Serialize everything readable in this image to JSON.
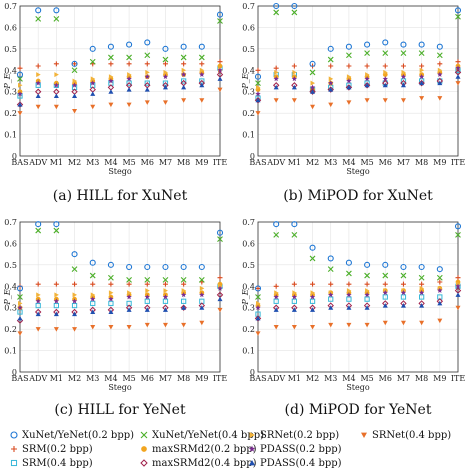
{
  "chart_data": [
    {
      "type": "scatter",
      "caption": "(a) HILL for XuNet",
      "xlabel": "Stego",
      "ylabel": "P_E",
      "ylim": [
        0,
        0.7
      ],
      "yticks": [
        "0",
        "0.1",
        "0.2",
        "0.3",
        "0.4",
        "0.5",
        "0.6",
        "0.7"
      ],
      "categories": [
        "BAS",
        "ADV",
        "M1",
        "M2",
        "M3",
        "M4",
        "M5",
        "M6",
        "M7",
        "M8",
        "M9",
        "ITE"
      ],
      "grid": true,
      "series": {
        "xy02": [
          0.38,
          0.68,
          0.68,
          0.43,
          0.5,
          0.51,
          0.52,
          0.53,
          0.5,
          0.51,
          0.51,
          0.66
        ],
        "xy04": [
          0.36,
          0.64,
          0.64,
          0.4,
          0.44,
          0.46,
          0.46,
          0.47,
          0.45,
          0.46,
          0.46,
          0.63
        ],
        "srm02": [
          0.41,
          0.42,
          0.43,
          0.43,
          0.43,
          0.43,
          0.43,
          0.43,
          0.43,
          0.43,
          0.43,
          0.44
        ],
        "srm04": [
          0.28,
          0.33,
          0.33,
          0.32,
          0.33,
          0.34,
          0.34,
          0.34,
          0.34,
          0.35,
          0.35,
          0.41
        ],
        "maxs02": [
          0.3,
          0.35,
          0.34,
          0.34,
          0.35,
          0.36,
          0.37,
          0.37,
          0.38,
          0.38,
          0.39,
          0.42
        ],
        "maxs04": [
          0.24,
          0.3,
          0.3,
          0.3,
          0.31,
          0.32,
          0.33,
          0.33,
          0.33,
          0.34,
          0.34,
          0.38
        ],
        "srn02": [
          0.33,
          0.38,
          0.38,
          0.35,
          0.36,
          0.37,
          0.38,
          0.39,
          0.39,
          0.4,
          0.4,
          0.4
        ],
        "srn04": [
          0.2,
          0.23,
          0.23,
          0.21,
          0.23,
          0.24,
          0.24,
          0.25,
          0.25,
          0.26,
          0.26,
          0.31
        ],
        "pd02": [
          0.29,
          0.34,
          0.33,
          0.33,
          0.34,
          0.35,
          0.36,
          0.37,
          0.37,
          0.38,
          0.38,
          0.4
        ],
        "pd04": [
          0.24,
          0.28,
          0.28,
          0.28,
          0.29,
          0.3,
          0.31,
          0.31,
          0.32,
          0.32,
          0.33,
          0.36
        ]
      }
    },
    {
      "type": "scatter",
      "caption": "(b) MiPOD for XuNet",
      "xlabel": "Stego",
      "ylabel": "P_E",
      "ylim": [
        0,
        0.7
      ],
      "yticks": [
        "0",
        "0.1",
        "0.2",
        "0.3",
        "0.4",
        "0.5",
        "0.6",
        "0.7"
      ],
      "categories": [
        "BAS",
        "ADV",
        "M1",
        "M2",
        "M3",
        "M4",
        "M5",
        "M6",
        "M7",
        "M8",
        "M9",
        "ITE"
      ],
      "grid": true,
      "series": {
        "xy02": [
          0.37,
          0.7,
          0.7,
          0.43,
          0.5,
          0.51,
          0.52,
          0.53,
          0.52,
          0.52,
          0.51,
          0.68
        ],
        "xy04": [
          0.34,
          0.67,
          0.67,
          0.39,
          0.45,
          0.47,
          0.48,
          0.48,
          0.48,
          0.48,
          0.47,
          0.65
        ],
        "srm02": [
          0.4,
          0.41,
          0.42,
          0.42,
          0.42,
          0.42,
          0.42,
          0.42,
          0.42,
          0.42,
          0.43,
          0.44
        ],
        "srm04": [
          0.27,
          0.38,
          0.38,
          0.31,
          0.32,
          0.33,
          0.34,
          0.34,
          0.35,
          0.35,
          0.35,
          0.4
        ],
        "maxs02": [
          0.31,
          0.37,
          0.37,
          0.31,
          0.34,
          0.36,
          0.37,
          0.38,
          0.38,
          0.38,
          0.39,
          0.42
        ],
        "maxs04": [
          0.26,
          0.33,
          0.33,
          0.3,
          0.31,
          0.32,
          0.33,
          0.34,
          0.34,
          0.34,
          0.35,
          0.39
        ],
        "srn02": [
          0.32,
          0.39,
          0.39,
          0.34,
          0.36,
          0.37,
          0.38,
          0.39,
          0.39,
          0.4,
          0.4,
          0.41
        ],
        "srn04": [
          0.2,
          0.26,
          0.26,
          0.23,
          0.24,
          0.25,
          0.26,
          0.26,
          0.26,
          0.27,
          0.27,
          0.34
        ],
        "pd02": [
          0.29,
          0.36,
          0.36,
          0.32,
          0.34,
          0.35,
          0.36,
          0.36,
          0.37,
          0.37,
          0.38,
          0.41
        ],
        "pd04": [
          0.26,
          0.32,
          0.32,
          0.3,
          0.31,
          0.32,
          0.33,
          0.33,
          0.33,
          0.34,
          0.34,
          0.37
        ]
      }
    },
    {
      "type": "scatter",
      "caption": "(c) HILL for YeNet",
      "xlabel": "Stego",
      "ylabel": "P_E",
      "ylim": [
        0,
        0.7
      ],
      "yticks": [
        "0",
        "0.1",
        "0.2",
        "0.3",
        "0.4",
        "0.5",
        "0.6",
        "0.7"
      ],
      "categories": [
        "BAS",
        "ADV",
        "M1",
        "M2",
        "M3",
        "M4",
        "M5",
        "M6",
        "M7",
        "M8",
        "M9",
        "ITE"
      ],
      "grid": true,
      "series": {
        "xy02": [
          0.39,
          0.69,
          0.69,
          0.55,
          0.51,
          0.5,
          0.49,
          0.49,
          0.49,
          0.49,
          0.49,
          0.65
        ],
        "xy04": [
          0.35,
          0.66,
          0.66,
          0.48,
          0.45,
          0.44,
          0.43,
          0.43,
          0.43,
          0.43,
          0.43,
          0.62
        ],
        "srm02": [
          0.4,
          0.41,
          0.41,
          0.41,
          0.41,
          0.41,
          0.41,
          0.41,
          0.41,
          0.41,
          0.42,
          0.44
        ],
        "srm04": [
          0.28,
          0.31,
          0.31,
          0.31,
          0.32,
          0.32,
          0.32,
          0.33,
          0.33,
          0.33,
          0.33,
          0.4
        ],
        "maxs02": [
          0.3,
          0.34,
          0.34,
          0.34,
          0.35,
          0.35,
          0.36,
          0.36,
          0.36,
          0.37,
          0.37,
          0.41
        ],
        "maxs04": [
          0.24,
          0.28,
          0.28,
          0.28,
          0.29,
          0.29,
          0.3,
          0.3,
          0.3,
          0.3,
          0.31,
          0.36
        ],
        "srn02": [
          0.32,
          0.36,
          0.36,
          0.36,
          0.36,
          0.37,
          0.37,
          0.38,
          0.38,
          0.38,
          0.39,
          0.4
        ],
        "srn04": [
          0.18,
          0.2,
          0.2,
          0.2,
          0.21,
          0.21,
          0.21,
          0.22,
          0.22,
          0.22,
          0.23,
          0.29
        ],
        "pd02": [
          0.3,
          0.33,
          0.33,
          0.33,
          0.34,
          0.34,
          0.35,
          0.35,
          0.35,
          0.36,
          0.36,
          0.39
        ],
        "pd04": [
          0.25,
          0.27,
          0.27,
          0.27,
          0.28,
          0.28,
          0.29,
          0.29,
          0.29,
          0.3,
          0.3,
          0.34
        ]
      }
    },
    {
      "type": "scatter",
      "caption": "(d) MiPOD for YeNet",
      "xlabel": "Stego",
      "ylabel": "P_E",
      "ylim": [
        0,
        0.7
      ],
      "yticks": [
        "0",
        "0.1",
        "0.2",
        "0.3",
        "0.4",
        "0.5",
        "0.6",
        "0.7"
      ],
      "categories": [
        "BAS",
        "ADV",
        "M1",
        "M2",
        "M3",
        "M4",
        "M5",
        "M6",
        "M7",
        "M8",
        "M9",
        "ITE"
      ],
      "grid": true,
      "series": {
        "xy02": [
          0.39,
          0.69,
          0.69,
          0.58,
          0.53,
          0.51,
          0.5,
          0.5,
          0.49,
          0.49,
          0.48,
          0.68
        ],
        "xy04": [
          0.35,
          0.64,
          0.64,
          0.53,
          0.48,
          0.46,
          0.45,
          0.45,
          0.45,
          0.44,
          0.44,
          0.64
        ],
        "srm02": [
          0.39,
          0.4,
          0.41,
          0.41,
          0.41,
          0.41,
          0.41,
          0.41,
          0.41,
          0.41,
          0.42,
          0.44
        ],
        "srm04": [
          0.27,
          0.33,
          0.33,
          0.33,
          0.34,
          0.34,
          0.34,
          0.35,
          0.35,
          0.35,
          0.35,
          0.4
        ],
        "maxs02": [
          0.31,
          0.36,
          0.36,
          0.36,
          0.37,
          0.37,
          0.37,
          0.38,
          0.38,
          0.38,
          0.39,
          0.42
        ],
        "maxs04": [
          0.25,
          0.3,
          0.3,
          0.3,
          0.31,
          0.31,
          0.31,
          0.32,
          0.32,
          0.32,
          0.33,
          0.38
        ],
        "srn02": [
          0.32,
          0.37,
          0.37,
          0.37,
          0.37,
          0.38,
          0.38,
          0.38,
          0.38,
          0.39,
          0.39,
          0.41
        ],
        "srn04": [
          0.18,
          0.21,
          0.21,
          0.21,
          0.22,
          0.22,
          0.22,
          0.23,
          0.23,
          0.23,
          0.24,
          0.3
        ],
        "pd02": [
          0.3,
          0.35,
          0.35,
          0.35,
          0.36,
          0.36,
          0.36,
          0.37,
          0.37,
          0.37,
          0.38,
          0.4
        ],
        "pd04": [
          0.25,
          0.29,
          0.29,
          0.29,
          0.3,
          0.3,
          0.3,
          0.31,
          0.31,
          0.31,
          0.32,
          0.36
        ]
      }
    }
  ],
  "legend": [
    {
      "key": "xy02",
      "label": "XuNet/YeNet(0.2 bpp)",
      "marker": "circle",
      "color": "#1f77d4"
    },
    {
      "key": "xy04",
      "label": "XuNet/YeNet(0.4 bpp)",
      "marker": "cross",
      "color": "#4caf2a"
    },
    {
      "key": "srn02",
      "label": "SRNet(0.2 bpp)",
      "marker": "tri-right",
      "color": "#f2b33a"
    },
    {
      "key": "srn04",
      "label": "SRNet(0.4 bpp)",
      "marker": "tri-down",
      "color": "#e8702a"
    },
    {
      "key": "srm02",
      "label": "SRM(0.2 bpp)",
      "marker": "plus",
      "color": "#d94a1f"
    },
    {
      "key": "maxs02",
      "label": "maxSRMd2(0.2 bpp)",
      "marker": "filled-circle",
      "color": "#f2a51f"
    },
    {
      "key": "pd02",
      "label": "PDASS(0.2 bpp)",
      "marker": "star",
      "color": "#7a2d8f"
    },
    {
      "key": "srm04",
      "label": "SRM(0.4 bpp)",
      "marker": "square",
      "color": "#36b7d8"
    },
    {
      "key": "maxs04",
      "label": "maxSRMd2(0.4 bpp)",
      "marker": "diamond",
      "color": "#a0204a"
    },
    {
      "key": "pd04",
      "label": "PDASS(0.4 bpp)",
      "marker": "tri-up",
      "color": "#1f4fb0"
    }
  ]
}
